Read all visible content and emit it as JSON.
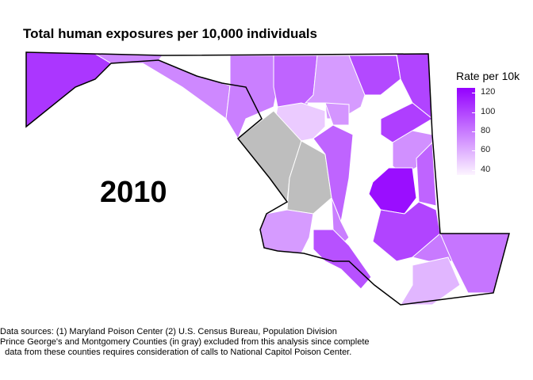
{
  "title": "Total human exposures per 10,000 individuals",
  "year_label": "2010",
  "legend": {
    "title": "Rate per 10k",
    "ticks": [
      "120",
      "100",
      "80",
      "60",
      "40"
    ],
    "tick_values": [
      120,
      100,
      80,
      60,
      40
    ],
    "range": [
      35,
      125
    ],
    "colors": {
      "low": "#fcf4ff",
      "high": "#9400ff"
    }
  },
  "notes": {
    "line1": "Data sources: (1) Maryland Poison Center (2) U.S. Census Bureau, Population Division",
    "line2": "Prince George's and Montgomery Counties (in gray) excluded from this analysis since complete",
    "line3": "  data from these counties requires consideration of calls to National Capitol Poison Center."
  },
  "colors": {
    "excluded": "#bebebe",
    "outline": "#000000",
    "borders": "#ffffff"
  },
  "regions": [
    {
      "name": "Garrett/Allegany/Washington west",
      "value": 105
    },
    {
      "name": "Washington",
      "value": 75
    },
    {
      "name": "Frederick",
      "value": 78
    },
    {
      "name": "Carroll",
      "value": 88
    },
    {
      "name": "Baltimore County",
      "value": 68
    },
    {
      "name": "Harford",
      "value": 98
    },
    {
      "name": "Cecil",
      "value": 100
    },
    {
      "name": "Howard",
      "value": 50
    },
    {
      "name": "Baltimore City",
      "value": 70
    },
    {
      "name": "Montgomery",
      "excluded": true
    },
    {
      "name": "Prince George's",
      "excluded": true
    },
    {
      "name": "Anne Arundel",
      "value": 88
    },
    {
      "name": "Kent",
      "value": 102
    },
    {
      "name": "Queen Anne's",
      "value": 72
    },
    {
      "name": "Talbot",
      "value": 120
    },
    {
      "name": "Caroline",
      "value": 88
    },
    {
      "name": "Calvert",
      "value": 78
    },
    {
      "name": "Charles",
      "value": 68
    },
    {
      "name": "St. Mary's",
      "value": 95
    },
    {
      "name": "Dorchester",
      "value": 100
    },
    {
      "name": "Wicomico",
      "value": 80
    },
    {
      "name": "Somerset",
      "value": 58
    },
    {
      "name": "Worcester",
      "value": 82
    }
  ]
}
